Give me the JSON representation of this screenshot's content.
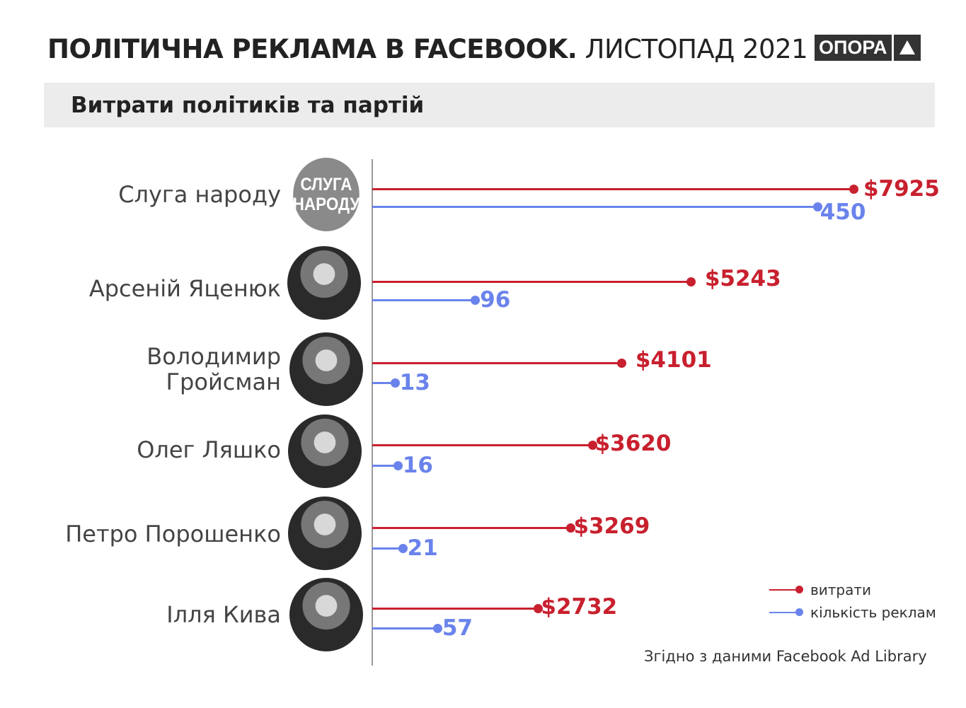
{
  "header": {
    "title_bold": "ПОЛІТИЧНА РЕКЛАМА В FACEBOOK.",
    "title_light": "ЛИСТОПАД 2021",
    "logo_text": "ОПОРА"
  },
  "subtitle": "Витрати політиків та партій",
  "colors": {
    "spend": "#c8202e",
    "ads": "#6a83ec"
  },
  "chart_data": {
    "type": "bar",
    "orientation": "horizontal",
    "categories": [
      "Слуга народу",
      "Арсеній Яценюк",
      "Володимир\nГройсман",
      "Олег Ляшко",
      "Петро Порошенко",
      "Ілля Кива"
    ],
    "series": [
      {
        "name": "витрати",
        "values": [
          7925,
          5243,
          4101,
          3620,
          3269,
          2732
        ],
        "labels": [
          "$7925",
          "$5243",
          "$4101",
          "$3620",
          "$3269",
          "$2732"
        ]
      },
      {
        "name": "кількість реклам",
        "values": [
          450,
          96,
          13,
          16,
          21,
          57
        ],
        "labels": [
          "450",
          "96",
          "13",
          "16",
          "21",
          "57"
        ]
      }
    ],
    "logo_avatar_text": "СЛУГА\nНАРОДУ",
    "legend_position": "bottom-right"
  },
  "source": "Згідно з даними Facebook Ad Library"
}
